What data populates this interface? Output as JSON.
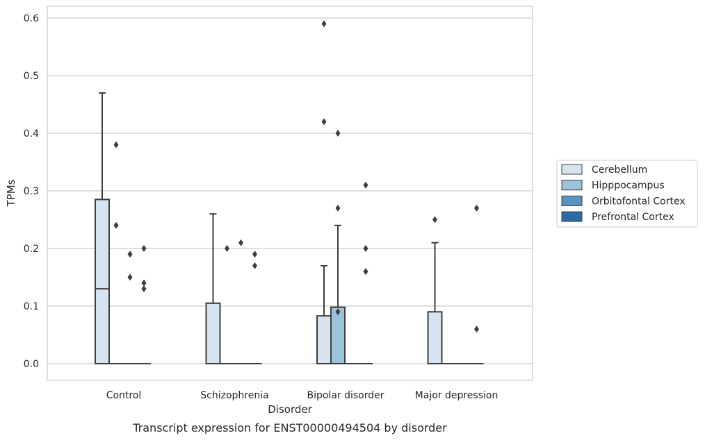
{
  "chart_data": {
    "type": "box",
    "xlabel": "Disorder",
    "ylabel": "TPMs",
    "caption": "Transcript expression for ENST00000494504 by disorder",
    "ylim": [
      -0.028,
      0.62
    ],
    "yticks": [
      0.0,
      0.1,
      0.2,
      0.3,
      0.4,
      0.5,
      0.6
    ],
    "ytick_labels": [
      "0.0",
      "0.1",
      "0.2",
      "0.3",
      "0.4",
      "0.5",
      "0.6"
    ],
    "grid": "horizontal",
    "legend_position": "right-center",
    "categories": [
      "Control",
      "Schizophrenia",
      "Bipolar disorder",
      "Major depression"
    ],
    "series": [
      {
        "name": "Cerebellum",
        "color": "#d6e4f1",
        "boxes": [
          {
            "q1": 0.0,
            "median": 0.13,
            "q3": 0.285,
            "whisker_low": 0.0,
            "whisker_high": 0.47,
            "outliers": []
          },
          {
            "q1": 0.0,
            "median": 0.0,
            "q3": 0.105,
            "whisker_low": 0.0,
            "whisker_high": 0.26,
            "outliers": []
          },
          {
            "q1": 0.0,
            "median": 0.0,
            "q3": 0.083,
            "whisker_low": 0.0,
            "whisker_high": 0.17,
            "outliers": [
              0.59,
              0.42
            ]
          },
          {
            "q1": 0.0,
            "median": 0.0,
            "q3": 0.09,
            "whisker_low": 0.0,
            "whisker_high": 0.21,
            "outliers": [
              0.25
            ]
          }
        ]
      },
      {
        "name": "Hipppocampus",
        "color": "#9bc3dc",
        "boxes": [
          {
            "q1": 0.0,
            "median": 0.0,
            "q3": 0.0,
            "whisker_low": 0.0,
            "whisker_high": 0.0,
            "outliers": [
              0.38,
              0.24
            ]
          },
          {
            "q1": 0.0,
            "median": 0.0,
            "q3": 0.0,
            "whisker_low": 0.0,
            "whisker_high": 0.0,
            "outliers": [
              0.2
            ]
          },
          {
            "q1": 0.0,
            "median": 0.0,
            "q3": 0.098,
            "whisker_low": 0.0,
            "whisker_high": 0.24,
            "outliers": [
              0.4,
              0.27,
              0.09
            ]
          },
          {
            "q1": 0.0,
            "median": 0.0,
            "q3": 0.0,
            "whisker_low": 0.0,
            "whisker_high": 0.0,
            "outliers": []
          }
        ]
      },
      {
        "name": "Orbitofontal Cortex",
        "color": "#5a94c1",
        "boxes": [
          {
            "q1": 0.0,
            "median": 0.0,
            "q3": 0.0,
            "whisker_low": 0.0,
            "whisker_high": 0.0,
            "outliers": [
              0.19,
              0.15
            ]
          },
          {
            "q1": 0.0,
            "median": 0.0,
            "q3": 0.0,
            "whisker_low": 0.0,
            "whisker_high": 0.0,
            "outliers": [
              0.21
            ]
          },
          {
            "q1": 0.0,
            "median": 0.0,
            "q3": 0.0,
            "whisker_low": 0.0,
            "whisker_high": 0.0,
            "outliers": []
          },
          {
            "q1": 0.0,
            "median": 0.0,
            "q3": 0.0,
            "whisker_low": 0.0,
            "whisker_high": 0.0,
            "outliers": []
          }
        ]
      },
      {
        "name": "Prefrontal Cortex",
        "color": "#2c6aa8",
        "boxes": [
          {
            "q1": 0.0,
            "median": 0.0,
            "q3": 0.0,
            "whisker_low": 0.0,
            "whisker_high": 0.0,
            "outliers": [
              0.2,
              0.14,
              0.13
            ]
          },
          {
            "q1": 0.0,
            "median": 0.0,
            "q3": 0.0,
            "whisker_low": 0.0,
            "whisker_high": 0.0,
            "outliers": [
              0.19,
              0.17
            ]
          },
          {
            "q1": 0.0,
            "median": 0.0,
            "q3": 0.0,
            "whisker_low": 0.0,
            "whisker_high": 0.0,
            "outliers": [
              0.31,
              0.2,
              0.16
            ]
          },
          {
            "q1": 0.0,
            "median": 0.0,
            "q3": 0.0,
            "whisker_low": 0.0,
            "whisker_high": 0.0,
            "outliers": [
              0.27,
              0.06
            ]
          }
        ]
      }
    ]
  }
}
